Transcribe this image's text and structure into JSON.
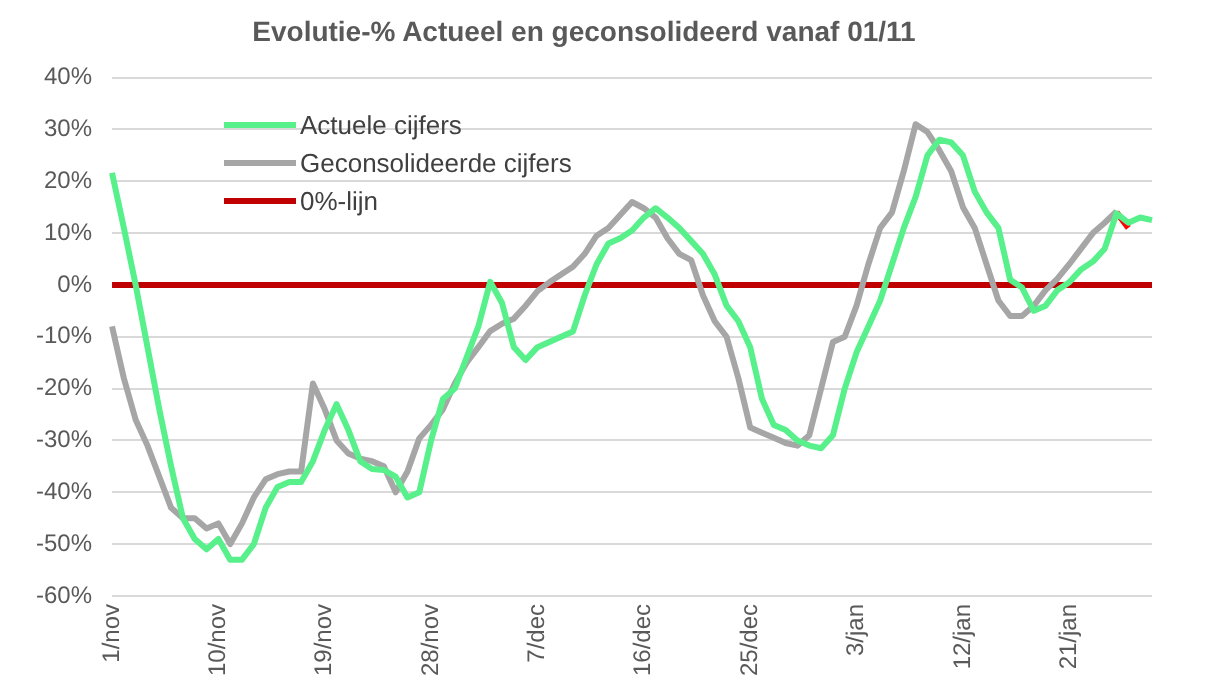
{
  "chart_data": {
    "type": "line",
    "title": "Evolutie-% Actueel en geconsolideerd vanaf 01/11",
    "categories": [
      "1/nov",
      null,
      null,
      null,
      null,
      null,
      null,
      null,
      null,
      "10/nov",
      null,
      null,
      null,
      null,
      null,
      null,
      null,
      null,
      "19/nov",
      null,
      null,
      null,
      null,
      null,
      null,
      null,
      null,
      "28/nov",
      null,
      null,
      null,
      null,
      null,
      null,
      null,
      null,
      "7/dec",
      null,
      null,
      null,
      null,
      null,
      null,
      null,
      null,
      "16/dec",
      null,
      null,
      null,
      null,
      null,
      null,
      null,
      null,
      "25/dec",
      null,
      null,
      null,
      null,
      null,
      null,
      null,
      null,
      "3/jan",
      null,
      null,
      null,
      null,
      null,
      null,
      null,
      null,
      "12/jan",
      null,
      null,
      null,
      null,
      null,
      null,
      null,
      null,
      "21/jan",
      null,
      null,
      null,
      null,
      null,
      null,
      null
    ],
    "series": [
      {
        "name": "Actuele cijfers",
        "color": "#57f08a",
        "values": [
          21.6,
          11,
          0,
          -12,
          -24,
          -35,
          -45,
          -49,
          -51,
          -49,
          -53,
          -53,
          -50,
          -43,
          -39,
          -38,
          -38,
          -34,
          -28,
          -23,
          -28,
          -34,
          -35.5,
          -35.7,
          -37,
          -41,
          -40,
          -30,
          -22,
          -20,
          -14,
          -8,
          0.6,
          -3.5,
          -12,
          -14.5,
          -12,
          -11,
          -10,
          -9,
          -2,
          4,
          8,
          9,
          10.5,
          13,
          14.8,
          13,
          11,
          8.5,
          6,
          2,
          -4,
          -7,
          -12,
          -22,
          -27,
          -28,
          -30,
          -31,
          -31.5,
          -29,
          -20,
          -13,
          -8,
          -3,
          4,
          11,
          17,
          25,
          28,
          27.5,
          25,
          18,
          14,
          11,
          1,
          -0.5,
          -5,
          -4,
          -1,
          0.5,
          3,
          4.5,
          7,
          13.8,
          12,
          13,
          12.5
        ]
      },
      {
        "name": "Geconsolideerde cijfers",
        "color": "#a6a6a6",
        "values": [
          -8,
          -18,
          -26,
          -31,
          -37,
          -43,
          -45,
          -45,
          -47,
          -46,
          -50,
          -46,
          -41,
          -37.5,
          -36.5,
          -36,
          -36,
          -19,
          -24,
          -30,
          -32.5,
          -33.5,
          -34,
          -35,
          -40,
          -36,
          -29.6,
          -27,
          -24,
          -19,
          -15,
          -12,
          -8.9,
          -7.5,
          -6.5,
          -4,
          -1.2,
          0.5,
          2,
          3.5,
          6,
          9.5,
          11,
          13.5,
          16,
          14.8,
          13,
          9,
          6,
          4.8,
          -2,
          -7,
          -10,
          -18,
          -27.5,
          -28.5,
          -29.5,
          -30.5,
          -31,
          -29,
          -20,
          -11,
          -10,
          -4,
          4,
          11,
          14,
          22,
          31,
          29.5,
          26,
          22,
          15,
          11,
          4,
          -3,
          -6,
          -6,
          -4,
          -1,
          1.2,
          4,
          7,
          10,
          12,
          14.2,
          null,
          null,
          null
        ]
      },
      {
        "name": "0%-lijn",
        "color": "#c00000",
        "values": [
          0,
          0,
          0,
          0,
          0,
          0,
          0,
          0,
          0,
          0,
          0,
          0,
          0,
          0,
          0,
          0,
          0,
          0,
          0,
          0,
          0,
          0,
          0,
          0,
          0,
          0,
          0,
          0,
          0,
          0,
          0,
          0,
          0,
          0,
          0,
          0,
          0,
          0,
          0,
          0,
          0,
          0,
          0,
          0,
          0,
          0,
          0,
          0,
          0,
          0,
          0,
          0,
          0,
          0,
          0,
          0,
          0,
          0,
          0,
          0,
          0,
          0,
          0,
          0,
          0,
          0,
          0,
          0,
          0,
          0,
          0,
          0,
          0,
          0,
          0,
          0,
          0,
          0,
          0,
          0,
          0,
          0,
          0,
          0,
          0,
          0,
          0,
          0,
          0
        ]
      },
      {
        "color": "#ff0000",
        "values": [
          null,
          null,
          null,
          null,
          null,
          null,
          null,
          null,
          null,
          null,
          null,
          null,
          null,
          null,
          null,
          null,
          null,
          null,
          null,
          null,
          null,
          null,
          null,
          null,
          null,
          null,
          null,
          null,
          null,
          null,
          null,
          null,
          null,
          null,
          null,
          null,
          null,
          null,
          null,
          null,
          null,
          null,
          null,
          null,
          null,
          null,
          null,
          null,
          null,
          null,
          null,
          null,
          null,
          null,
          null,
          null,
          null,
          null,
          null,
          null,
          null,
          null,
          null,
          null,
          null,
          null,
          null,
          null,
          null,
          null,
          null,
          null,
          null,
          null,
          null,
          null,
          null,
          null,
          null,
          null,
          null,
          null,
          null,
          null,
          null,
          14,
          11,
          null,
          null
        ]
      }
    ],
    "ylim": [
      -60,
      40
    ],
    "yticks": [
      {
        "value": -60,
        "label": "-60%"
      },
      {
        "value": -50,
        "label": "-50%"
      },
      {
        "value": -40,
        "label": "-40%"
      },
      {
        "value": -30,
        "label": "-30%"
      },
      {
        "value": -20,
        "label": "-20%"
      },
      {
        "value": -10,
        "label": "-10%"
      },
      {
        "value": 0,
        "label": "0%"
      },
      {
        "value": 10,
        "label": "10%"
      },
      {
        "value": 20,
        "label": "20%"
      },
      {
        "value": 30,
        "label": "30%"
      },
      {
        "value": 40,
        "label": "40%"
      }
    ],
    "grid": "y",
    "legend": "top left"
  }
}
